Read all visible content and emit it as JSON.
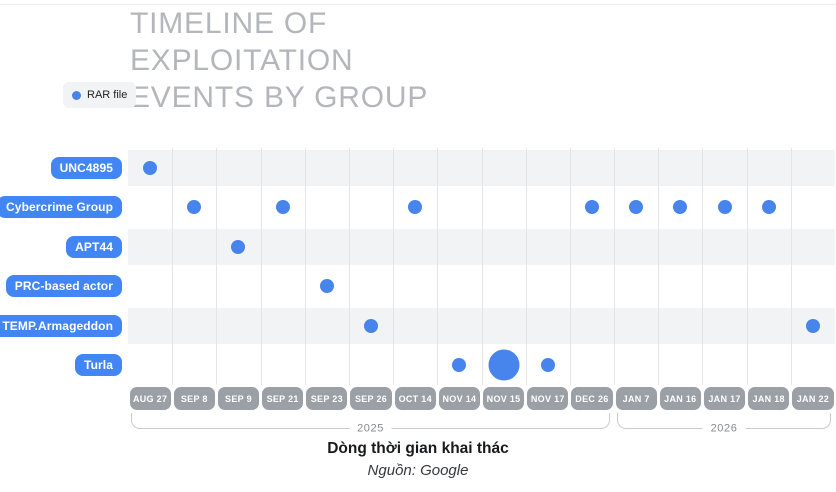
{
  "figure": {
    "legend": {
      "label": "RAR file"
    },
    "title_lines": [
      "TIMELINE OF",
      "EXPLOITATION",
      "EVENTS BY GROUP"
    ],
    "caption": "Dòng thời gian khai thác",
    "source": "Nguồn: Google"
  },
  "colors": {
    "event_dot_blue": "#4784ec",
    "group_pill_blue": "#4285f4",
    "date_pill_gray": "#9aa0a6",
    "row_band_gray": "#f1f3f4",
    "title_gray": "#b3b6ba"
  },
  "chart_data": {
    "type": "scatter",
    "title": "TIMELINE OF EXPLOITATION EVENTS BY GROUP",
    "legend": [
      {
        "label": "RAR file",
        "symbol": "dot",
        "color": "#4784ec"
      }
    ],
    "groups": [
      "UNC4895",
      "Cybercrime Group",
      "APT44",
      "PRC-based actor",
      "TEMP.Armageddon",
      "Turla"
    ],
    "dates": [
      "AUG 27",
      "SEP 8",
      "SEP 9",
      "SEP 21",
      "SEP 23",
      "SEP 26",
      "OCT 14",
      "NOV 14",
      "NOV 15",
      "NOV 17",
      "DEC 26",
      "JAN 7",
      "JAN 16",
      "JAN 17",
      "JAN 18",
      "JAN 22"
    ],
    "events": [
      {
        "group": "UNC4895",
        "date": "AUG 27",
        "size": "normal"
      },
      {
        "group": "Cybercrime Group",
        "date": "SEP 8",
        "size": "normal"
      },
      {
        "group": "APT44",
        "date": "SEP 9",
        "size": "normal"
      },
      {
        "group": "Cybercrime Group",
        "date": "SEP 21",
        "size": "normal"
      },
      {
        "group": "PRC-based actor",
        "date": "SEP 23",
        "size": "normal"
      },
      {
        "group": "TEMP.Armageddon",
        "date": "SEP 26",
        "size": "normal"
      },
      {
        "group": "Cybercrime Group",
        "date": "OCT 14",
        "size": "normal"
      },
      {
        "group": "Turla",
        "date": "NOV 14",
        "size": "normal"
      },
      {
        "group": "Turla",
        "date": "NOV 15",
        "size": "large"
      },
      {
        "group": "Turla",
        "date": "NOV 17",
        "size": "normal"
      },
      {
        "group": "Cybercrime Group",
        "date": "DEC 26",
        "size": "normal"
      },
      {
        "group": "Cybercrime Group",
        "date": "JAN 7",
        "size": "normal"
      },
      {
        "group": "Cybercrime Group",
        "date": "JAN 16",
        "size": "normal"
      },
      {
        "group": "Cybercrime Group",
        "date": "JAN 17",
        "size": "normal"
      },
      {
        "group": "Cybercrime Group",
        "date": "JAN 18",
        "size": "normal"
      },
      {
        "group": "TEMP.Armageddon",
        "date": "JAN 22",
        "size": "normal"
      }
    ],
    "year_spans": [
      {
        "label": "2025",
        "from": "AUG 27",
        "to": "DEC 26"
      },
      {
        "label": "2026",
        "from": "JAN 7",
        "to": "JAN 22"
      }
    ],
    "layout": {
      "row_striping": true,
      "gridlines": "vertical",
      "legend_position": "top-left"
    }
  }
}
